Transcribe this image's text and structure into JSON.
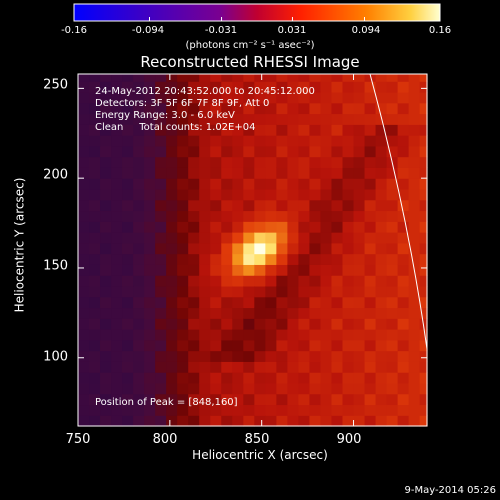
{
  "chart_data": {
    "type": "heatmap",
    "title": "Reconstructed RHESSI Image",
    "xlabel": "Heliocentric X (arcsec)",
    "ylabel": "Heliocentric Y (arcsec)",
    "xlim": [
      750,
      940
    ],
    "ylim": [
      62,
      258
    ],
    "x_ticks": [
      "750",
      "800",
      "850",
      "900"
    ],
    "x_tick_values": [
      750,
      800,
      850,
      900
    ],
    "y_ticks": [
      "100",
      "150",
      "200",
      "250"
    ],
    "y_tick_values": [
      100,
      150,
      200,
      250
    ],
    "colorbar": {
      "ticks": [
        "-0.16",
        "-0.094",
        "-0.031",
        "0.031",
        "0.094",
        "0.16"
      ],
      "tick_values": [
        -0.16,
        -0.094,
        -0.031,
        0.031,
        0.094,
        0.16
      ],
      "unit_label": "(photons cm⁻² s⁻¹ asec⁻²)",
      "range": [
        -0.16,
        0.16
      ]
    },
    "annotations": {
      "time_range": "24-May-2012 20:43:52.000 to 20:45:12.000",
      "detectors": "Detectors: 3F 5F 6F 7F 8F 9F, Att 0",
      "energy": "Energy Range: 3.0 - 6.0 keV",
      "method": "Clean     Total counts: 1.02E+04",
      "peak": "Position of Peak = [848,160]"
    },
    "peak": [
      848,
      160
    ],
    "colors": {
      "negative": "#2b0a4a",
      "positive_low": "#7a0a0a",
      "positive_mid": "#e03a10",
      "positive_high": "#ffe070",
      "peak": "#ffffff"
    }
  },
  "footer_date": "9-May-2014 05:26"
}
